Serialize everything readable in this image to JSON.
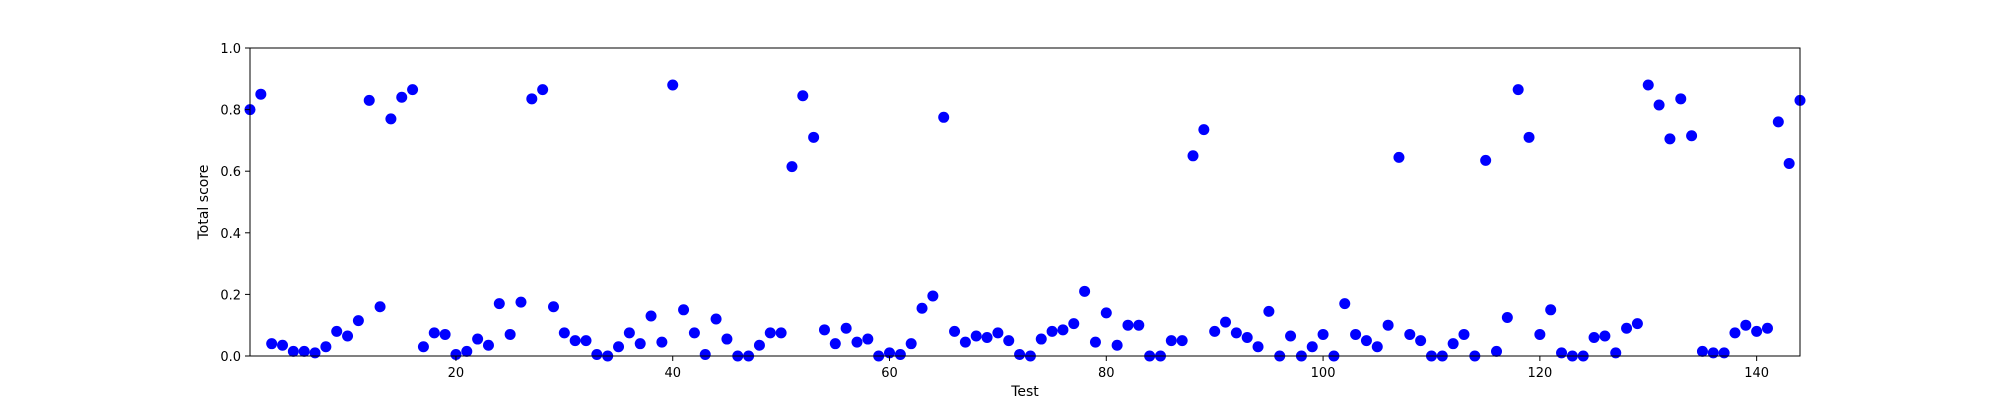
{
  "chart_data": {
    "type": "scatter",
    "title": "",
    "xlabel": "Test",
    "ylabel": "Total score",
    "xlim": [
      1,
      144
    ],
    "ylim": [
      0.0,
      1.0
    ],
    "xticks": [
      20,
      40,
      60,
      80,
      100,
      120,
      140
    ],
    "xtick_labels": [
      "20",
      "40",
      "60",
      "80",
      "100",
      "120",
      "140"
    ],
    "yticks": [
      0.0,
      0.2,
      0.4,
      0.6,
      0.8,
      1.0
    ],
    "ytick_labels": [
      "0.0",
      "0.2",
      "0.4",
      "0.6",
      "0.8",
      "1.0"
    ],
    "grid": false,
    "marker_color": "#0000ff",
    "series": [
      {
        "x": [
          1,
          2,
          3,
          4,
          5,
          6,
          7,
          8,
          9,
          10,
          11,
          12,
          13,
          14,
          15,
          16,
          17,
          18,
          19,
          20,
          21,
          22,
          23,
          24,
          25,
          26,
          27,
          28,
          29,
          30,
          31,
          32,
          33,
          34,
          35,
          36,
          37,
          38,
          39,
          40,
          41,
          42,
          43,
          44,
          45,
          46,
          47,
          48,
          49,
          50,
          51,
          52,
          53,
          54,
          55,
          56,
          57,
          58,
          59,
          60,
          61,
          62,
          63,
          64,
          65,
          66,
          67,
          68,
          69,
          70,
          71,
          72,
          73,
          74,
          75,
          76,
          77,
          78,
          79,
          80,
          81,
          82,
          83,
          84,
          85,
          86,
          87,
          88,
          89,
          90,
          91,
          92,
          93,
          94,
          95,
          96,
          97,
          98,
          99,
          100,
          101,
          102,
          103,
          104,
          105,
          106,
          107,
          108,
          109,
          110,
          111,
          112,
          113,
          114,
          115,
          116,
          117,
          118,
          119,
          120,
          121,
          122,
          123,
          124,
          125,
          126,
          127,
          128,
          129,
          130,
          131,
          132,
          133,
          134,
          135,
          136,
          137,
          138,
          139,
          140,
          141,
          142,
          143,
          144
        ],
        "values": [
          0.8,
          0.85,
          0.04,
          0.035,
          0.015,
          0.015,
          0.01,
          0.03,
          0.08,
          0.065,
          0.115,
          0.83,
          0.16,
          0.77,
          0.84,
          0.865,
          0.03,
          0.075,
          0.07,
          0.005,
          0.015,
          0.055,
          0.035,
          0.17,
          0.07,
          0.175,
          0.835,
          0.865,
          0.16,
          0.075,
          0.05,
          0.05,
          0.005,
          0.0,
          0.03,
          0.075,
          0.04,
          0.13,
          0.045,
          0.88,
          0.15,
          0.075,
          0.005,
          0.12,
          0.055,
          0.0,
          0.0,
          0.035,
          0.075,
          0.075,
          0.615,
          0.845,
          0.71,
          0.085,
          0.04,
          0.09,
          0.045,
          0.055,
          0.0,
          0.01,
          0.005,
          0.04,
          0.155,
          0.195,
          0.775,
          0.08,
          0.045,
          0.065,
          0.06,
          0.075,
          0.05,
          0.005,
          0.0,
          0.055,
          0.08,
          0.085,
          0.105,
          0.21,
          0.045,
          0.14,
          0.035,
          0.1,
          0.1,
          0.0,
          0.0,
          0.05,
          0.05,
          0.65,
          0.735,
          0.08,
          0.11,
          0.075,
          0.06,
          0.03,
          0.145,
          0.0,
          0.065,
          0.0,
          0.03,
          0.07,
          0.0,
          0.17,
          0.07,
          0.05,
          0.03,
          0.1,
          0.645,
          0.07,
          0.05,
          0.0,
          0.0,
          0.04,
          0.07,
          0.0,
          0.635,
          0.015,
          0.125,
          0.865,
          0.71,
          0.07,
          0.15,
          0.01,
          0.0,
          0.0,
          0.06,
          0.065,
          0.01,
          0.09,
          0.105,
          0.88,
          0.815,
          0.705,
          0.835,
          0.715,
          0.015,
          0.01,
          0.01,
          0.075,
          0.1,
          0.08,
          0.09,
          0.76,
          0.625,
          0.83
        ]
      }
    ]
  }
}
